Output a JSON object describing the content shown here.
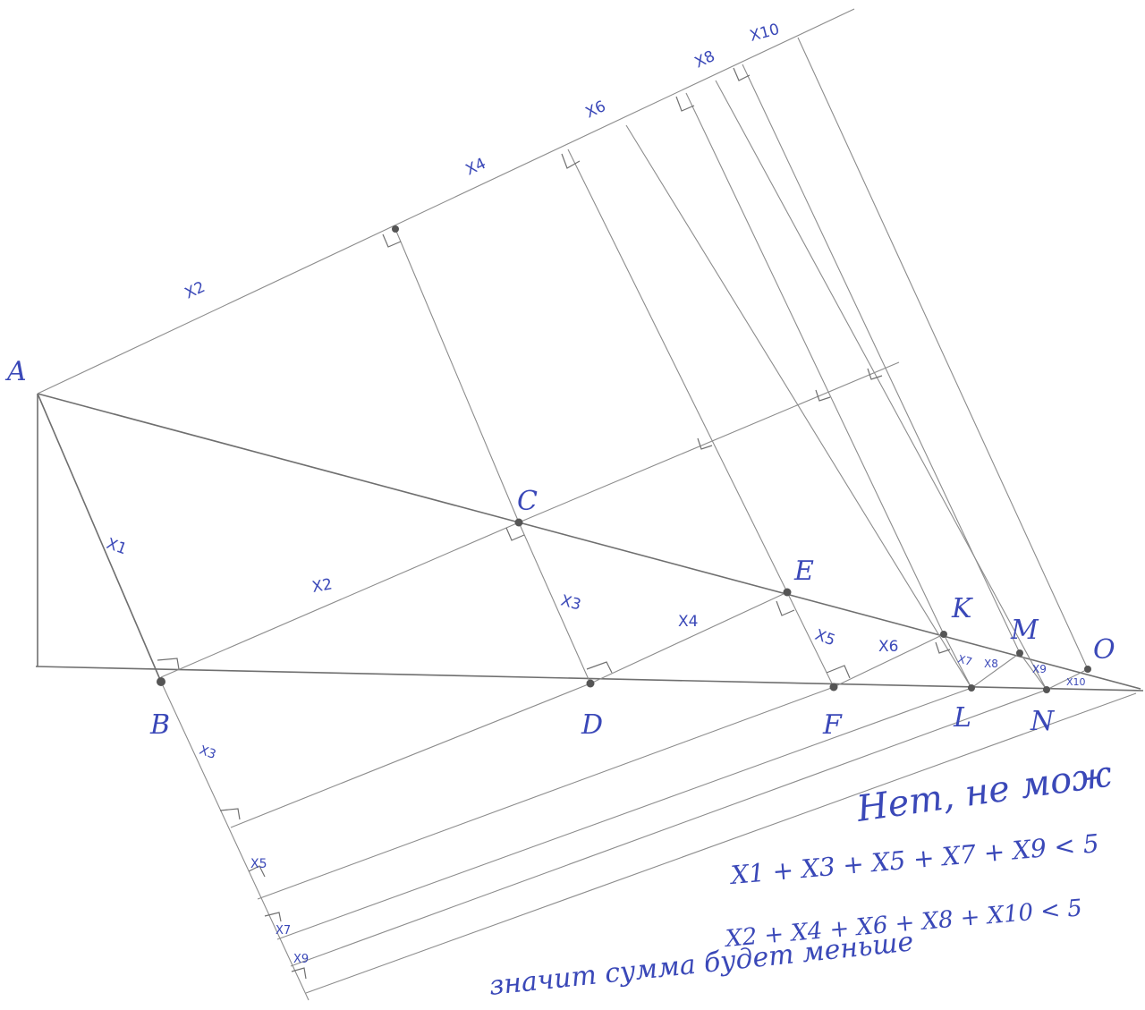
{
  "points": {
    "A": "A",
    "B": "B",
    "C": "C",
    "D": "D",
    "E": "E",
    "F": "F",
    "K": "K",
    "L": "L",
    "M": "M",
    "N": "N",
    "O": "O"
  },
  "segment_labels": {
    "top_x2": "X2",
    "top_x4": "X4",
    "top_x6": "X6",
    "top_x8": "X8",
    "top_x10": "X10",
    "bc_x1": "X1",
    "bc_x2": "X2",
    "cd_x3": "X3",
    "de_x4": "X4",
    "ef_x5": "X5",
    "fk_x6": "X6",
    "kl_x7": "X7",
    "lm_x8": "X8",
    "mn_x9": "X9",
    "no_x10": "X10",
    "bot_x3": "X3",
    "bot_x5": "X5",
    "bot_x7": "X7",
    "bot_x9": "X9"
  },
  "notes": {
    "line1": "Нет, не мож",
    "line2": "X1 + X3 + X5 + X7 + X9 < 5",
    "line3": "X2 + X4 + X6 + X8 + X10 < 5",
    "line4": "значит сумма будет меньше"
  }
}
